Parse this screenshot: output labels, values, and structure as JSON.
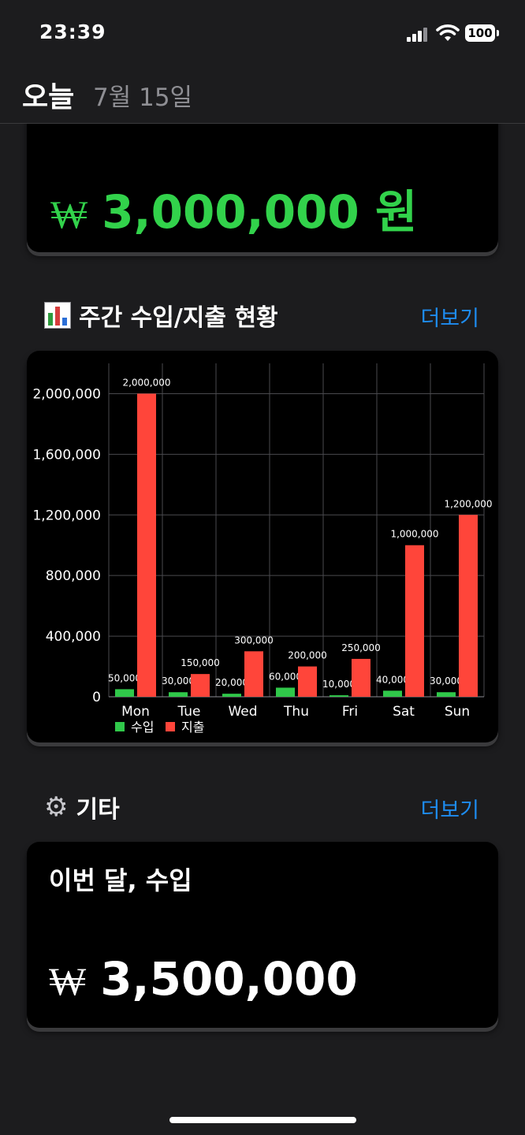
{
  "status_bar": {
    "time": "23:39",
    "battery": "100"
  },
  "header": {
    "title": "오늘",
    "date": "7월 15일"
  },
  "summary_card": {
    "currency_symbol": "₩",
    "amount": "3,000,000 원"
  },
  "weekly_section": {
    "icon": "bar-chart-icon",
    "title": "주간 수입/지출 현황",
    "more_label": "더보기"
  },
  "chart_data": {
    "type": "bar",
    "categories": [
      "Mon",
      "Tue",
      "Wed",
      "Thu",
      "Fri",
      "Sat",
      "Sun"
    ],
    "series": [
      {
        "name": "수입",
        "color": "#30c84a",
        "values": [
          50000,
          30000,
          20000,
          60000,
          10000,
          40000,
          30000
        ]
      },
      {
        "name": "지출",
        "color": "#ff453a",
        "values": [
          2000000,
          150000,
          300000,
          200000,
          250000,
          1000000,
          1200000
        ]
      }
    ],
    "y_ticks": [
      0,
      400000,
      800000,
      1200000,
      1600000,
      2000000
    ],
    "ylim": [
      0,
      2200000
    ],
    "grid": true,
    "legend": "bottom-left",
    "data_labels": true
  },
  "other_section": {
    "icon": "gear-icon",
    "title": "기타",
    "more_label": "더보기"
  },
  "monthly_card": {
    "title": "이번 달, 수입",
    "currency_symbol": "₩",
    "amount": "3,500,000"
  }
}
